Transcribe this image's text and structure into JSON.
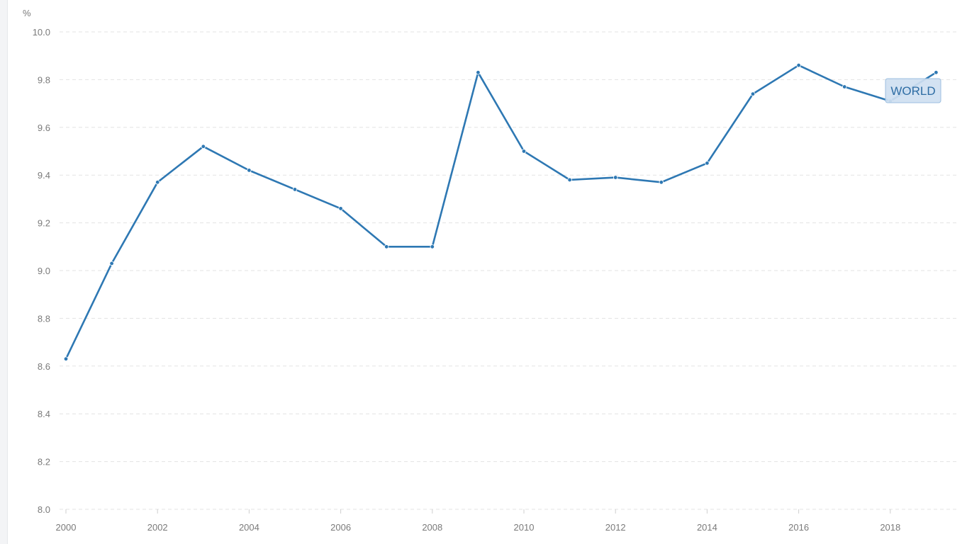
{
  "chart_data": {
    "type": "line",
    "unit_label": "%",
    "x": [
      2000,
      2001,
      2002,
      2003,
      2004,
      2005,
      2006,
      2007,
      2008,
      2009,
      2010,
      2011,
      2012,
      2013,
      2014,
      2015,
      2016,
      2017,
      2018,
      2019
    ],
    "series": [
      {
        "name": "WORLD",
        "values": [
          8.63,
          9.03,
          9.37,
          9.52,
          9.42,
          9.34,
          9.26,
          9.1,
          9.1,
          9.83,
          9.5,
          9.38,
          9.39,
          9.37,
          9.45,
          9.74,
          9.86,
          9.77,
          9.71,
          9.83
        ],
        "color": "#2e78b3"
      }
    ],
    "ylim": [
      8.0,
      10.0
    ],
    "y_ticks": [
      "8.0",
      "8.2",
      "8.4",
      "8.6",
      "8.8",
      "9.0",
      "9.2",
      "9.4",
      "9.6",
      "9.8",
      "10.0"
    ],
    "x_ticks": [
      "2000",
      "2002",
      "2004",
      "2006",
      "2008",
      "2010",
      "2012",
      "2014",
      "2016",
      "2018"
    ],
    "grid": true,
    "grid_style": "dashed",
    "series_label": "WORLD",
    "label_style": {
      "background": "#cfe0f1",
      "border": "#9cbfe0",
      "text_color": "#2e6da4"
    },
    "axis_text_color": "#7a7a7a",
    "grid_color": "#e3e3e3"
  }
}
